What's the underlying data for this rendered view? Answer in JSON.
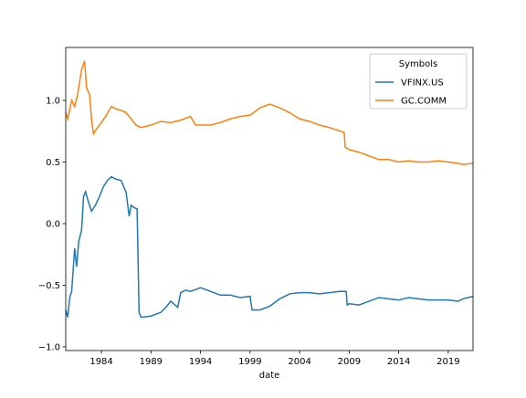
{
  "chart_data": {
    "type": "line",
    "xlabel": "date",
    "legend_title": "Symbols",
    "legend_loc": "upper right",
    "xlim": [
      1980.4,
      2021.5
    ],
    "xticks": [
      1984,
      1989,
      1994,
      1999,
      2004,
      2009,
      2014,
      2019
    ],
    "ylim": [
      -1.03,
      1.43
    ],
    "yticks": [
      {
        "value": -1,
        "label": "−1.0"
      },
      {
        "value": -0.5,
        "label": "−0.5"
      },
      {
        "value": 0,
        "label": "0.0"
      },
      {
        "value": 0.5,
        "label": "0.5"
      },
      {
        "value": 1,
        "label": "1.0"
      }
    ],
    "series": [
      {
        "name": "VFINX.US",
        "color": "#1f77b4",
        "x": [
          1980.4,
          1980.6,
          1980.8,
          1981,
          1981.3,
          1981.5,
          1981.7,
          1982,
          1982.2,
          1982.4,
          1982.6,
          1983,
          1983.4,
          1983.8,
          1984.2,
          1984.6,
          1985,
          1985.5,
          1986,
          1986.5,
          1986.8,
          1987,
          1987.3,
          1987.6,
          1987.8,
          1988,
          1989,
          1990,
          1990.5,
          1991,
          1991.7,
          1992,
          1992.5,
          1993,
          1994,
          1995,
          1996,
          1997,
          1998,
          1999,
          1999.2,
          2000,
          2001,
          2002,
          2003,
          2004,
          2005,
          2006,
          2007,
          2008,
          2008.7,
          2008.8,
          2009,
          2010,
          2011,
          2012,
          2013,
          2014,
          2015,
          2016,
          2017,
          2018,
          2019,
          2020,
          2020.5,
          2021.5
        ],
        "values": [
          -0.7,
          -0.76,
          -0.6,
          -0.55,
          -0.2,
          -0.35,
          -0.15,
          -0.05,
          0.22,
          0.26,
          0.2,
          0.1,
          0.15,
          0.22,
          0.3,
          0.35,
          0.38,
          0.36,
          0.35,
          0.25,
          0.06,
          0.15,
          0.13,
          0.12,
          -0.72,
          -0.76,
          -0.75,
          -0.72,
          -0.68,
          -0.63,
          -0.68,
          -0.56,
          -0.54,
          -0.55,
          -0.52,
          -0.55,
          -0.58,
          -0.58,
          -0.6,
          -0.59,
          -0.7,
          -0.7,
          -0.67,
          -0.61,
          -0.57,
          -0.56,
          -0.56,
          -0.57,
          -0.56,
          -0.55,
          -0.55,
          -0.66,
          -0.65,
          -0.66,
          -0.63,
          -0.6,
          -0.61,
          -0.62,
          -0.6,
          -0.61,
          -0.62,
          -0.62,
          -0.62,
          -0.63,
          -0.61,
          -0.59
        ]
      },
      {
        "name": "GC.COMM",
        "color": "#ff7f0e",
        "x": [
          1980.4,
          1980.6,
          1981,
          1981.3,
          1981.6,
          1982,
          1982.3,
          1982.5,
          1982.8,
          1983,
          1983.2,
          1983.6,
          1984,
          1984.5,
          1985,
          1985.5,
          1986,
          1986.5,
          1987,
          1987.5,
          1988,
          1989,
          1990,
          1991,
          1992,
          1993,
          1993.5,
          1995,
          1996,
          1997,
          1998,
          1999,
          2000,
          2001,
          2002,
          2003,
          2004,
          2005,
          2006,
          2007,
          2008.5,
          2008.6,
          2009,
          2010,
          2011,
          2012,
          2013,
          2014,
          2015,
          2016,
          2017,
          2018,
          2019,
          2020,
          2020.5,
          2021.5
        ],
        "values": [
          0.9,
          0.85,
          1.0,
          0.95,
          1.05,
          1.25,
          1.32,
          1.1,
          1.05,
          0.85,
          0.73,
          0.78,
          0.82,
          0.88,
          0.95,
          0.93,
          0.92,
          0.9,
          0.85,
          0.8,
          0.78,
          0.8,
          0.83,
          0.82,
          0.84,
          0.87,
          0.8,
          0.8,
          0.82,
          0.85,
          0.87,
          0.88,
          0.94,
          0.97,
          0.94,
          0.9,
          0.85,
          0.83,
          0.8,
          0.78,
          0.74,
          0.62,
          0.6,
          0.58,
          0.55,
          0.52,
          0.52,
          0.5,
          0.51,
          0.5,
          0.5,
          0.51,
          0.5,
          0.49,
          0.48,
          0.49
        ]
      }
    ]
  }
}
